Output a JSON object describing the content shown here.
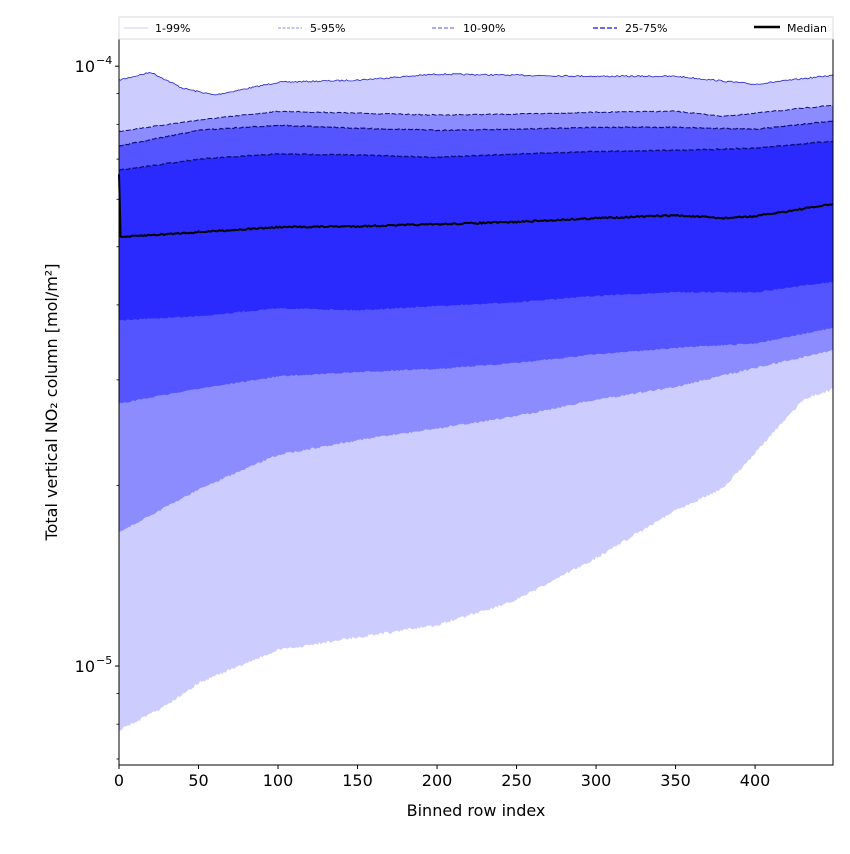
{
  "chart_data": {
    "type": "area",
    "title": "",
    "xlabel": "Binned row index",
    "ylabel": "Total vertical NO₂ column [mol/m²]",
    "xlim": [
      0,
      449
    ],
    "ylim": [
      6.84e-06,
      0.000111
    ],
    "yscale": "log",
    "xticks": [
      0,
      50,
      100,
      150,
      200,
      250,
      300,
      350,
      400
    ],
    "yticks": [
      {
        "value": 0.0001,
        "base": "10",
        "exp": "−4"
      },
      {
        "value": 1e-05,
        "base": "10",
        "exp": "−5"
      }
    ],
    "grid": false,
    "legend": {
      "placement": "top",
      "entries": [
        "1-99%",
        "5-95%",
        "10-90%",
        "25-75%",
        "Median"
      ]
    },
    "colors": {
      "band_1_99": "#ccccff",
      "band_5_95": "#8c8cff",
      "band_10_90": "#5555ff",
      "band_25_75": "#2a2aff",
      "edge_99": "#2020d0",
      "edge_dashed": "#10107a",
      "median": "#000000"
    },
    "series": [
      {
        "name": "p99",
        "x": [
          0,
          20,
          40,
          60,
          100,
          150,
          200,
          250,
          300,
          350,
          400,
          449
        ],
        "values": [
          9.48e-05,
          9.77e-05,
          9.19e-05,
          8.95e-05,
          9.4e-05,
          9.48e-05,
          9.7e-05,
          9.66e-05,
          9.62e-05,
          9.62e-05,
          9.33e-05,
          9.66e-05
        ]
      },
      {
        "name": "p95",
        "x": [
          0,
          50,
          100,
          150,
          200,
          250,
          300,
          350,
          380,
          400,
          449
        ],
        "values": [
          7.79e-05,
          8.13e-05,
          8.41e-05,
          8.35e-05,
          8.29e-05,
          8.32e-05,
          8.38e-05,
          8.41e-05,
          8.25e-05,
          8.35e-05,
          8.61e-05
        ]
      },
      {
        "name": "p90",
        "x": [
          0,
          50,
          100,
          150,
          200,
          250,
          300,
          350,
          400,
          449
        ],
        "values": [
          7.36e-05,
          7.82e-05,
          7.97e-05,
          7.88e-05,
          7.82e-05,
          7.85e-05,
          7.91e-05,
          7.91e-05,
          7.85e-05,
          8.1e-05
        ]
      },
      {
        "name": "p75",
        "x": [
          0,
          50,
          100,
          150,
          200,
          250,
          300,
          350,
          400,
          449
        ],
        "values": [
          6.71e-05,
          7e-05,
          7.14e-05,
          7.11e-05,
          7.05e-05,
          7.14e-05,
          7.21e-05,
          7.24e-05,
          7.3e-05,
          7.5e-05
        ]
      },
      {
        "name": "median",
        "x": [
          0,
          1,
          50,
          100,
          150,
          200,
          250,
          300,
          350,
          380,
          400,
          449
        ],
        "values": [
          6.6e-05,
          5.19e-05,
          5.29e-05,
          5.39e-05,
          5.41e-05,
          5.45e-05,
          5.5e-05,
          5.58e-05,
          5.64e-05,
          5.58e-05,
          5.62e-05,
          5.89e-05
        ]
      },
      {
        "name": "p25",
        "x": [
          0,
          50,
          100,
          150,
          200,
          250,
          300,
          350,
          400,
          449
        ],
        "values": [
          3.77e-05,
          3.83e-05,
          3.95e-05,
          3.92e-05,
          3.98e-05,
          4.04e-05,
          4.14e-05,
          4.2e-05,
          4.2e-05,
          4.37e-05
        ]
      },
      {
        "name": "p10",
        "x": [
          0,
          50,
          100,
          150,
          200,
          250,
          300,
          350,
          400,
          449
        ],
        "values": [
          2.74e-05,
          2.9e-05,
          3.04e-05,
          3.09e-05,
          3.13e-05,
          3.2e-05,
          3.31e-05,
          3.39e-05,
          3.45e-05,
          3.66e-05
        ]
      },
      {
        "name": "p5",
        "x": [
          0,
          50,
          100,
          150,
          200,
          250,
          300,
          350,
          400,
          449
        ],
        "values": [
          1.67e-05,
          1.97e-05,
          2.25e-05,
          2.38e-05,
          2.49e-05,
          2.61e-05,
          2.78e-05,
          2.92e-05,
          3.14e-05,
          3.36e-05
        ]
      },
      {
        "name": "p1",
        "x": [
          0,
          25,
          50,
          100,
          150,
          200,
          250,
          300,
          350,
          380,
          400,
          430,
          449
        ],
        "values": [
          7.82e-06,
          8.45e-06,
          9.37e-06,
          1.063e-05,
          1.117e-05,
          1.17e-05,
          1.288e-05,
          1.514e-05,
          1.82e-05,
          1.98e-05,
          2.265e-05,
          2.775e-05,
          2.9e-05
        ]
      }
    ]
  }
}
